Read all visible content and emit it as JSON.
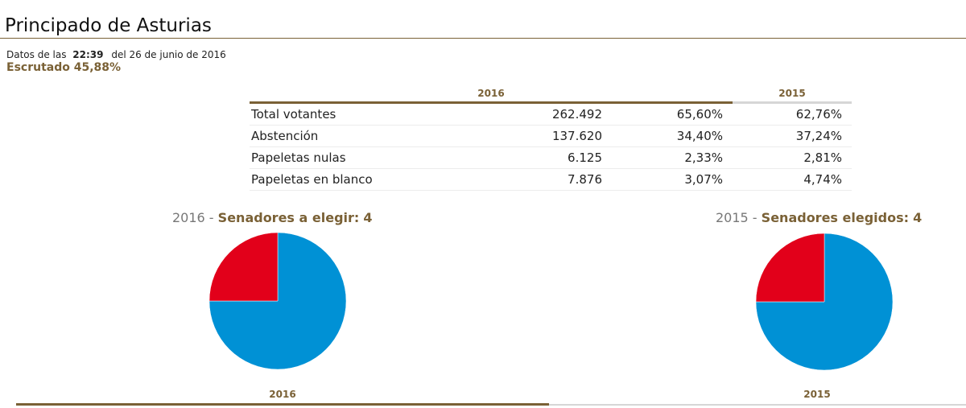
{
  "page": {
    "title": "Principado de Asturias",
    "data_prefix": "Datos de las",
    "data_time": "22:39",
    "data_date": "del 26 de junio de 2016",
    "scrutiny": "Escrutado 45,88%"
  },
  "table": {
    "headers": [
      "2016",
      "2015"
    ],
    "rows": [
      {
        "label": "Total votantes",
        "votes": "262.492",
        "pct2016": "65,60%",
        "pct2015": "62,76%"
      },
      {
        "label": "Abstención",
        "votes": "137.620",
        "pct2016": "34,40%",
        "pct2015": "37,24%"
      },
      {
        "label": "Papeletas nulas",
        "votes": "6.125",
        "pct2016": "2,33%",
        "pct2015": "2,81%"
      },
      {
        "label": "Papeletas en blanco",
        "votes": "7.876",
        "pct2016": "3,07%",
        "pct2015": "4,74%"
      }
    ]
  },
  "charts": {
    "left": {
      "year": "2016",
      "sep": " - ",
      "label": "Senadores a elegir:",
      "count": "4"
    },
    "right": {
      "year": "2015",
      "sep": " - ",
      "label": "Senadores elegidos:",
      "count": "4"
    }
  },
  "chart_data": [
    {
      "type": "pie",
      "slices": [
        {
          "value": 3,
          "color": "#0091d5"
        },
        {
          "value": 1,
          "color": "#e2001a"
        }
      ]
    },
    {
      "type": "pie",
      "slices": [
        {
          "value": 3,
          "color": "#0091d5"
        },
        {
          "value": 1,
          "color": "#e2001a"
        }
      ]
    }
  ],
  "bottom_tabs": [
    "2016",
    "2015"
  ]
}
